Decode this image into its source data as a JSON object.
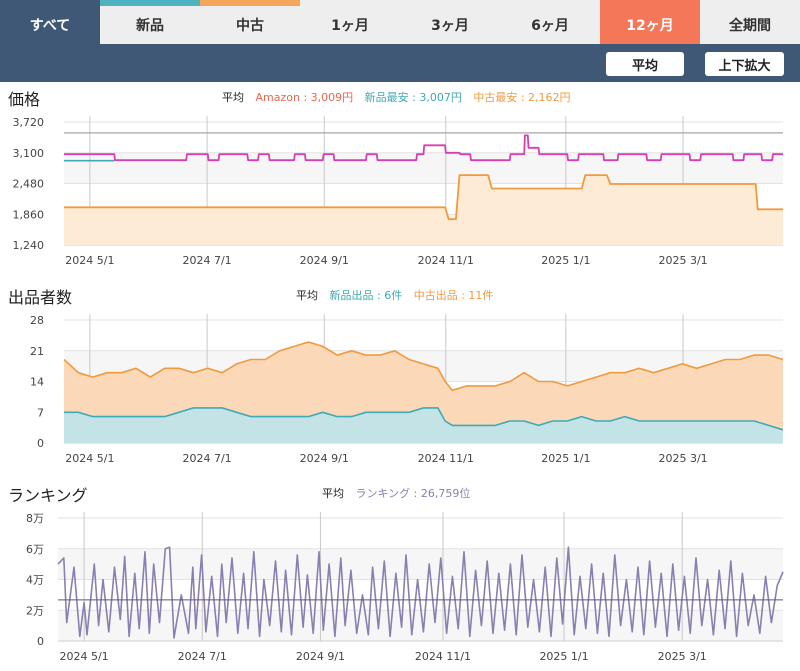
{
  "tabs": [
    {
      "label": "すべて"
    },
    {
      "label": "新品"
    },
    {
      "label": "中古"
    },
    {
      "label": "1ヶ月"
    },
    {
      "label": "3ヶ月"
    },
    {
      "label": "6ヶ月"
    },
    {
      "label": "12ヶ月"
    },
    {
      "label": "全期間"
    }
  ],
  "toolbar": {
    "avg_label": "平均",
    "zoom_label": "上下拡大"
  },
  "colors": {
    "amazon": "#e8674e",
    "new": "#3fa9b5",
    "used": "#f09a3e",
    "rank": "#8a7fb0",
    "magenta": "#d63fb4",
    "gray_line": "#a7a7a7",
    "tab_dark": "#3f5875",
    "tab_selected": "#f4775a"
  },
  "chart_data": [
    {
      "type": "line",
      "title": "価格",
      "legend_prefix": "平均",
      "legend": [
        {
          "label": "Amazon : 3,009円",
          "color": "#e8674e"
        },
        {
          "label": "新品最安 : 3,007円",
          "color": "#3fa9b5"
        },
        {
          "label": "中古最安 : 2,162円",
          "color": "#f09a3e"
        }
      ],
      "y_ticks": [
        "3,720",
        "3,100",
        "2,480",
        "1,860",
        "1,240"
      ],
      "ylim": [
        1240,
        3720
      ],
      "x_ticks": [
        "2024 5/1",
        "2024 7/1",
        "2024 9/1",
        "2024 11/1",
        "2025 1/1",
        "2025 3/1"
      ],
      "x_tick_pos": [
        0.036,
        0.199,
        0.362,
        0.531,
        0.698,
        0.861
      ],
      "series": [
        {
          "key": "ref_line",
          "color": "#a7a7a7",
          "width": 1.2,
          "x": [
            0,
            1
          ],
          "y": [
            3500,
            3500
          ]
        },
        {
          "key": "used",
          "color": "#f09a3e",
          "width": 1.8,
          "fill": "#fdebd6",
          "x": [
            0,
            0.53,
            0.535,
            0.545,
            0.55,
            0.59,
            0.595,
            0.72,
            0.725,
            0.755,
            0.76,
            0.962,
            0.965,
            1
          ],
          "y": [
            2000,
            2000,
            1760,
            1760,
            2650,
            2650,
            2380,
            2380,
            2650,
            2650,
            2470,
            2470,
            1960,
            1960
          ]
        },
        {
          "key": "new",
          "color": "#3fa9b5",
          "width": 1.6,
          "x": [
            0,
            0.07
          ],
          "y": [
            2940,
            2940
          ]
        },
        {
          "key": "magenta",
          "color": "#d63fb4",
          "width": 1.8,
          "x": [
            0,
            0.07,
            0.071,
            0.17,
            0.171,
            0.18,
            0.181,
            0.2,
            0.201,
            0.215,
            0.216,
            0.255,
            0.256,
            0.27,
            0.271,
            0.285,
            0.286,
            0.32,
            0.321,
            0.335,
            0.336,
            0.36,
            0.361,
            0.375,
            0.376,
            0.42,
            0.421,
            0.435,
            0.436,
            0.49,
            0.491,
            0.5,
            0.501,
            0.53,
            0.531,
            0.55,
            0.551,
            0.565,
            0.566,
            0.62,
            0.621,
            0.64,
            0.641,
            0.645,
            0.646,
            0.66,
            0.661,
            0.7,
            0.701,
            0.715,
            0.716,
            0.75,
            0.751,
            0.77,
            0.771,
            0.81,
            0.811,
            0.83,
            0.831,
            0.87,
            0.871,
            0.885,
            0.886,
            0.93,
            0.931,
            0.945,
            0.946,
            0.97,
            0.971,
            0.985,
            0.986,
            1
          ],
          "y": [
            3070,
            3070,
            2950,
            2950,
            3070,
            3070,
            3070,
            3070,
            2950,
            2950,
            3070,
            3070,
            2950,
            2950,
            3070,
            3070,
            2950,
            2950,
            3070,
            3070,
            2950,
            2950,
            3070,
            3070,
            2950,
            2950,
            3070,
            3070,
            2950,
            2950,
            3070,
            3070,
            3250,
            3250,
            3100,
            3100,
            3070,
            3070,
            2950,
            2950,
            3070,
            3070,
            3450,
            3450,
            3200,
            3200,
            3070,
            3070,
            2950,
            2950,
            3070,
            3070,
            2950,
            2950,
            3070,
            3070,
            2950,
            2950,
            3070,
            3070,
            2950,
            2950,
            3070,
            3070,
            2950,
            2950,
            3070,
            3070,
            2950,
            2950,
            3070,
            3070
          ]
        }
      ]
    },
    {
      "type": "area",
      "title": "出品者数",
      "legend_prefix": "平均",
      "legend": [
        {
          "label": "新品出品 : 6件",
          "color": "#3fa9b5"
        },
        {
          "label": "中古出品 : 11件",
          "color": "#f09a3e"
        }
      ],
      "y_ticks": [
        "28",
        "21",
        "14",
        "7",
        "0"
      ],
      "ylim": [
        0,
        28
      ],
      "x_ticks": [
        "2024 5/1",
        "2024 7/1",
        "2024 9/1",
        "2024 11/1",
        "2025 1/1",
        "2025 3/1"
      ],
      "x_tick_pos": [
        0.036,
        0.199,
        0.362,
        0.531,
        0.698,
        0.861
      ],
      "series": [
        {
          "key": "used",
          "color": "#f09a3e",
          "width": 1.6,
          "fill": "#fbd9b8",
          "x": [
            0,
            0.02,
            0.04,
            0.06,
            0.08,
            0.1,
            0.12,
            0.14,
            0.16,
            0.18,
            0.2,
            0.22,
            0.24,
            0.26,
            0.28,
            0.3,
            0.32,
            0.34,
            0.36,
            0.38,
            0.4,
            0.42,
            0.44,
            0.46,
            0.48,
            0.5,
            0.52,
            0.53,
            0.54,
            0.56,
            0.58,
            0.6,
            0.62,
            0.64,
            0.66,
            0.68,
            0.7,
            0.72,
            0.74,
            0.76,
            0.78,
            0.8,
            0.82,
            0.84,
            0.86,
            0.88,
            0.9,
            0.92,
            0.94,
            0.96,
            0.98,
            1
          ],
          "y": [
            19,
            16,
            15,
            16,
            16,
            17,
            15,
            17,
            17,
            16,
            17,
            16,
            18,
            19,
            19,
            21,
            22,
            23,
            22,
            20,
            21,
            20,
            20,
            21,
            19,
            18,
            17,
            14,
            12,
            13,
            13,
            13,
            14,
            16,
            14,
            14,
            13,
            14,
            15,
            16,
            16,
            17,
            16,
            17,
            18,
            17,
            18,
            19,
            19,
            20,
            20,
            19
          ]
        },
        {
          "key": "new",
          "color": "#3fa9b5",
          "width": 1.6,
          "fill": "#c3e3e6",
          "x": [
            0,
            0.02,
            0.04,
            0.06,
            0.08,
            0.1,
            0.12,
            0.14,
            0.16,
            0.18,
            0.2,
            0.22,
            0.24,
            0.26,
            0.28,
            0.3,
            0.32,
            0.34,
            0.36,
            0.38,
            0.4,
            0.42,
            0.44,
            0.46,
            0.48,
            0.5,
            0.52,
            0.53,
            0.54,
            0.56,
            0.58,
            0.6,
            0.62,
            0.64,
            0.66,
            0.68,
            0.7,
            0.72,
            0.74,
            0.76,
            0.78,
            0.8,
            0.82,
            0.84,
            0.86,
            0.88,
            0.9,
            0.92,
            0.94,
            0.96,
            0.98,
            1
          ],
          "y": [
            7,
            7,
            6,
            6,
            6,
            6,
            6,
            6,
            7,
            8,
            8,
            8,
            7,
            6,
            6,
            6,
            6,
            6,
            7,
            6,
            6,
            7,
            7,
            7,
            7,
            8,
            8,
            5,
            4,
            4,
            4,
            4,
            5,
            5,
            4,
            5,
            5,
            6,
            5,
            5,
            6,
            5,
            5,
            5,
            5,
            5,
            5,
            5,
            5,
            5,
            4,
            3
          ]
        }
      ]
    },
    {
      "type": "line",
      "title": "ランキング",
      "legend_prefix": "平均",
      "legend": [
        {
          "label": "ランキング : 26,759位",
          "color": "#8a7fb0"
        }
      ],
      "y_ticks": [
        "8万",
        "6万",
        "4万",
        "2万",
        "0"
      ],
      "ylim": [
        0,
        80000
      ],
      "avg": 26759,
      "x_ticks": [
        "2024 5/1",
        "2024 7/1",
        "2024 9/1",
        "2024 11/1",
        "2025 1/1",
        "2025 3/1"
      ],
      "x_tick_pos": [
        0.036,
        0.199,
        0.362,
        0.531,
        0.698,
        0.861
      ],
      "series": [
        {
          "key": "rank",
          "color": "#8a7fb0",
          "width": 1.6,
          "x": [
            0,
            0.008,
            0.012,
            0.022,
            0.03,
            0.036,
            0.04,
            0.05,
            0.056,
            0.062,
            0.07,
            0.078,
            0.086,
            0.092,
            0.098,
            0.106,
            0.112,
            0.12,
            0.126,
            0.132,
            0.14,
            0.148,
            0.154,
            0.16,
            0.17,
            0.18,
            0.186,
            0.19,
            0.198,
            0.204,
            0.212,
            0.22,
            0.226,
            0.232,
            0.24,
            0.248,
            0.256,
            0.262,
            0.27,
            0.278,
            0.284,
            0.292,
            0.3,
            0.308,
            0.314,
            0.322,
            0.33,
            0.338,
            0.344,
            0.352,
            0.36,
            0.366,
            0.374,
            0.382,
            0.39,
            0.396,
            0.404,
            0.412,
            0.42,
            0.428,
            0.434,
            0.442,
            0.45,
            0.458,
            0.466,
            0.474,
            0.48,
            0.488,
            0.496,
            0.504,
            0.512,
            0.52,
            0.528,
            0.536,
            0.544,
            0.552,
            0.56,
            0.568,
            0.576,
            0.584,
            0.592,
            0.6,
            0.608,
            0.616,
            0.624,
            0.632,
            0.64,
            0.648,
            0.656,
            0.664,
            0.672,
            0.68,
            0.688,
            0.696,
            0.704,
            0.712,
            0.72,
            0.728,
            0.736,
            0.744,
            0.752,
            0.76,
            0.768,
            0.776,
            0.784,
            0.792,
            0.8,
            0.808,
            0.816,
            0.824,
            0.832,
            0.84,
            0.848,
            0.856,
            0.864,
            0.872,
            0.88,
            0.888,
            0.896,
            0.904,
            0.912,
            0.92,
            0.928,
            0.936,
            0.944,
            0.952,
            0.96,
            0.968,
            0.976,
            0.984,
            0.992,
            1
          ],
          "y": [
            50000,
            54000,
            12000,
            48000,
            3000,
            25000,
            4000,
            50000,
            10000,
            40000,
            6000,
            48000,
            14000,
            55000,
            3000,
            44000,
            8000,
            58000,
            5000,
            50000,
            12000,
            60000,
            61000,
            2000,
            30000,
            5000,
            48000,
            8000,
            56000,
            6000,
            42000,
            3000,
            50000,
            12000,
            54000,
            5000,
            44000,
            8000,
            58000,
            3000,
            40000,
            10000,
            52000,
            6000,
            46000,
            4000,
            56000,
            9000,
            43000,
            5000,
            58000,
            7000,
            50000,
            3000,
            54000,
            10000,
            46000,
            5000,
            30000,
            4000,
            48000,
            8000,
            52000,
            3000,
            44000,
            9000,
            56000,
            4000,
            40000,
            6000,
            50000,
            12000,
            54000,
            5000,
            42000,
            8000,
            58000,
            3000,
            46000,
            10000,
            52000,
            5000,
            44000,
            7000,
            50000,
            4000,
            56000,
            9000,
            40000,
            6000,
            48000,
            3000,
            54000,
            11000,
            61000,
            4000,
            42000,
            8000,
            50000,
            5000,
            44000,
            3000,
            56000,
            10000,
            40000,
            6000,
            48000,
            4000,
            52000,
            9000,
            44000,
            3000,
            50000,
            7000,
            42000,
            5000,
            54000,
            10000,
            40000,
            4000,
            46000,
            8000,
            52000,
            3000,
            44000,
            10000,
            30000,
            5000,
            42000,
            12000,
            36000,
            45000
          ]
        }
      ]
    }
  ]
}
